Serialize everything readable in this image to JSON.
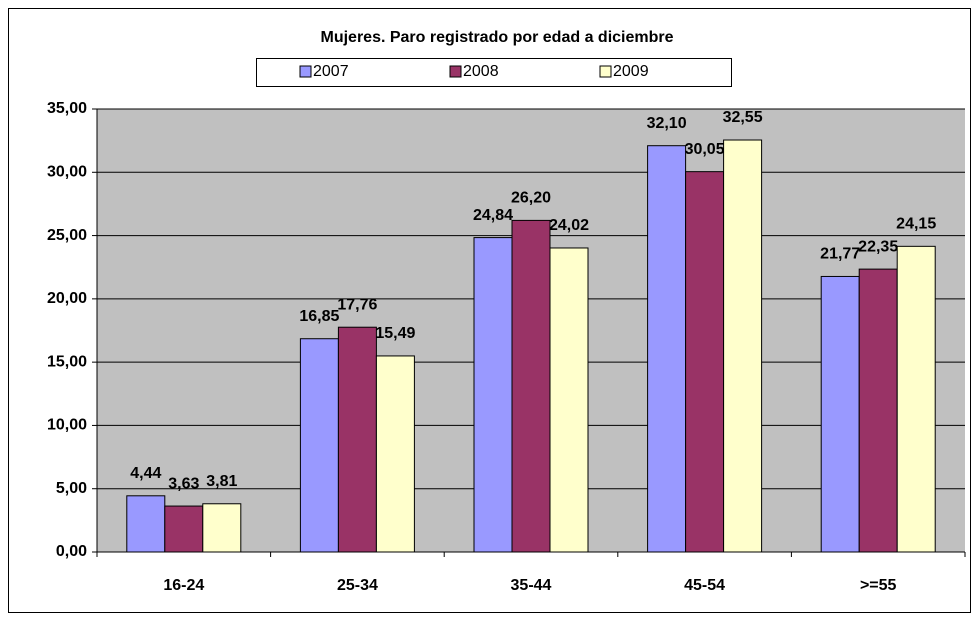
{
  "chart_data": {
    "type": "bar",
    "title": "Mujeres. Paro registrado por edad a diciembre",
    "categories": [
      "16-24",
      "25-34",
      "35-44",
      "45-54",
      ">=55"
    ],
    "series": [
      {
        "name": "2007",
        "color": "#9999ff",
        "values": [
          4.44,
          16.85,
          24.84,
          32.1,
          21.77
        ],
        "value_labels": [
          "4,44",
          "16,85",
          "24,84",
          "32,10",
          "21,77"
        ]
      },
      {
        "name": "2008",
        "color": "#993366",
        "values": [
          3.63,
          17.76,
          26.2,
          30.05,
          22.35
        ],
        "value_labels": [
          "3,63",
          "17,76",
          "26,20",
          "30,05",
          "22,35"
        ]
      },
      {
        "name": "2009",
        "color": "#ffffcc",
        "values": [
          3.81,
          15.49,
          24.02,
          32.55,
          24.15
        ],
        "value_labels": [
          "3,81",
          "15,49",
          "24,02",
          "32,55",
          "24,15"
        ]
      }
    ],
    "ylim": [
      0,
      35
    ],
    "yticks": [
      {
        "value": 0,
        "label": "0,00"
      },
      {
        "value": 5,
        "label": "5,00"
      },
      {
        "value": 10,
        "label": "10,00"
      },
      {
        "value": 15,
        "label": "15,00"
      },
      {
        "value": 20,
        "label": "20,00"
      },
      {
        "value": 25,
        "label": "25,00"
      },
      {
        "value": 30,
        "label": "30,00"
      },
      {
        "value": 35,
        "label": "35,00"
      }
    ],
    "grid": true,
    "legend": "top"
  }
}
